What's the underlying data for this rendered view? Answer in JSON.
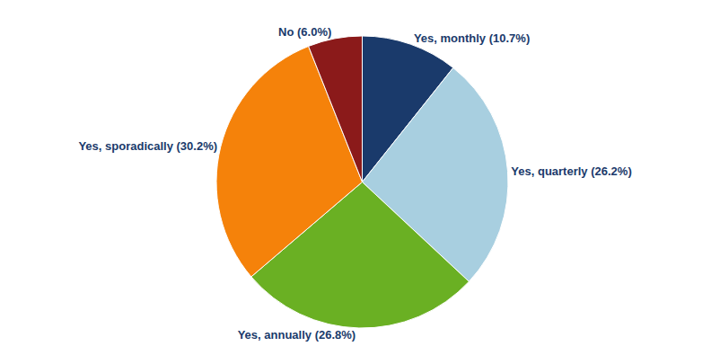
{
  "chart_data": {
    "type": "pie",
    "categories": [
      "Yes, monthly",
      "Yes, quarterly",
      "Yes, annually",
      "Yes, sporadically",
      "No"
    ],
    "values": [
      10.7,
      26.2,
      26.8,
      30.2,
      6.0
    ],
    "value_labels": [
      "Yes, monthly (10.7%)",
      "Yes, quarterly (26.2%)",
      "Yes, annually (26.8%)",
      "Yes, sporadically (30.2%)",
      "No (6.0%)"
    ],
    "colors": [
      "#1a3a6b",
      "#a8cfe0",
      "#6ab023",
      "#f5820a",
      "#8b1a1a"
    ],
    "data_labels": true
  }
}
